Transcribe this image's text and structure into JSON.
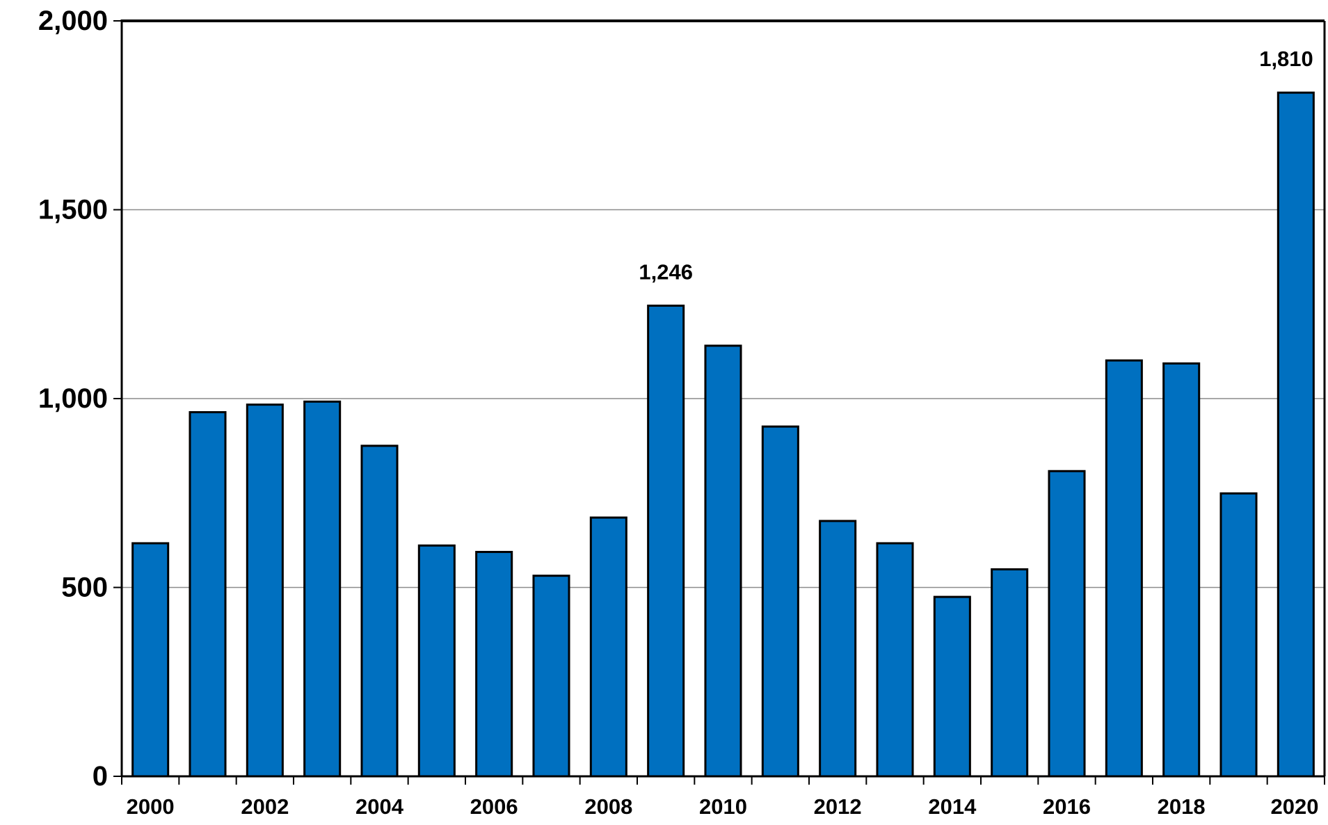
{
  "chart_data": {
    "type": "bar",
    "title": "",
    "xlabel": "",
    "ylabel": "",
    "categories": [
      "2000",
      "2001",
      "2002",
      "2003",
      "2004",
      "2005",
      "2006",
      "2007",
      "2008",
      "2009",
      "2010",
      "2011",
      "2012",
      "2013",
      "2014",
      "2015",
      "2016",
      "2017",
      "2018",
      "2019",
      "2020"
    ],
    "values": [
      617,
      964,
      984,
      992,
      875,
      611,
      594,
      531,
      685,
      1246,
      1140,
      926,
      676,
      617,
      475,
      548,
      808,
      1101,
      1093,
      749,
      1810
    ],
    "x_tick_labels": [
      "2000",
      "2002",
      "2004",
      "2006",
      "2008",
      "2010",
      "2012",
      "2014",
      "2016",
      "2018",
      "2020"
    ],
    "y_ticks": [
      0,
      500,
      1000,
      1500,
      2000
    ],
    "y_tick_labels": [
      "0",
      "500",
      "1,000",
      "1,500",
      "2,000"
    ],
    "ylim": [
      0,
      2000
    ],
    "grid": true,
    "legend": "none",
    "data_labels": [
      {
        "category": "2009",
        "text": "1,246"
      },
      {
        "category": "2020",
        "text": "1,810"
      }
    ],
    "colors": {
      "bar_fill": "#0070C0",
      "bar_stroke": "#000000",
      "grid": "#8C8C8C",
      "axis": "#000000"
    }
  }
}
